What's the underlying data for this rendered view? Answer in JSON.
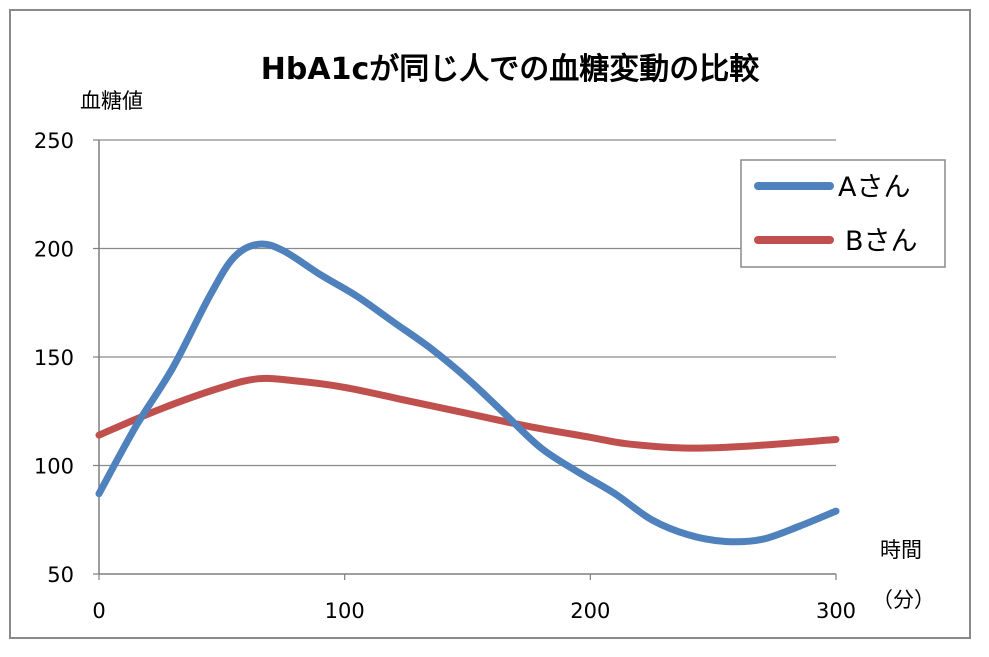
{
  "chart_data": {
    "type": "line",
    "title": "HbA1cが同じ人での血糖変動の比較",
    "ylabel": "血糖値",
    "xlabel_line1": "時間",
    "xlabel_line2": "（分）",
    "ylim": [
      50,
      250
    ],
    "xlim": [
      0,
      300
    ],
    "yticks": [
      50,
      100,
      150,
      200,
      250
    ],
    "xticks": [
      0,
      100,
      200,
      300
    ],
    "grid": "horizontal",
    "legend_position": "top-right",
    "series": [
      {
        "name": "Aさん",
        "color": "#4f81bd",
        "x": [
          0,
          15,
          30,
          45,
          55,
          65,
          75,
          90,
          105,
          120,
          135,
          150,
          165,
          180,
          195,
          210,
          225,
          240,
          255,
          270,
          285,
          300
        ],
        "values": [
          87,
          118,
          145,
          178,
          196,
          202,
          199,
          188,
          178,
          166,
          154,
          140,
          124,
          108,
          97,
          87,
          75,
          68,
          65,
          66,
          72,
          79
        ]
      },
      {
        "name": "Bさん",
        "color": "#c0504d",
        "x": [
          0,
          25,
          50,
          65,
          80,
          100,
          125,
          150,
          175,
          200,
          215,
          240,
          265,
          300
        ],
        "values": [
          114,
          126,
          136,
          140,
          139,
          136,
          130,
          124,
          118,
          113,
          110,
          108,
          109,
          112
        ]
      }
    ]
  }
}
